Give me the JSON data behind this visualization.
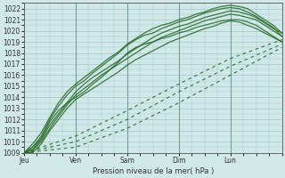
{
  "xlabel": "Pression niveau de la mer( hPa )",
  "ylim": [
    1009,
    1022.5
  ],
  "xlim": [
    0,
    120
  ],
  "yticks": [
    1009,
    1010,
    1011,
    1012,
    1013,
    1014,
    1015,
    1016,
    1017,
    1018,
    1019,
    1020,
    1021,
    1022
  ],
  "xtick_positions": [
    0,
    24,
    48,
    72,
    96,
    120
  ],
  "xtick_labels": [
    "Jeu",
    "Ven",
    "Sam",
    "Dim",
    "Lun",
    ""
  ],
  "bg_color": "#d0e8e8",
  "grid_color": "#a0c8c8",
  "line_color": "#2a6e2a",
  "solid_lines": [
    [
      0,
      1009,
      4,
      1009.8,
      8,
      1010.8,
      12,
      1012.2,
      16,
      1013.5,
      20,
      1014.5,
      24,
      1015.2,
      28,
      1015.8,
      32,
      1016.4,
      36,
      1017.0,
      40,
      1017.6,
      44,
      1018.1,
      48,
      1018.8,
      52,
      1019.3,
      56,
      1019.8,
      60,
      1020.2,
      64,
      1020.5,
      68,
      1020.7,
      72,
      1021.0,
      76,
      1021.2,
      80,
      1021.5,
      84,
      1021.7,
      88,
      1022.0,
      92,
      1022.2,
      96,
      1022.3,
      100,
      1022.2,
      104,
      1022.0,
      108,
      1021.5,
      112,
      1021.0,
      116,
      1020.5,
      120,
      1019.8
    ],
    [
      0,
      1009,
      4,
      1009.5,
      8,
      1010.5,
      12,
      1012.0,
      16,
      1013.2,
      20,
      1014.2,
      24,
      1015.0,
      28,
      1015.5,
      32,
      1016.2,
      36,
      1016.8,
      40,
      1017.4,
      44,
      1018.0,
      48,
      1018.7,
      52,
      1019.2,
      56,
      1019.6,
      60,
      1019.8,
      64,
      1020.2,
      68,
      1020.5,
      72,
      1020.8,
      76,
      1021.0,
      80,
      1021.3,
      84,
      1021.6,
      88,
      1021.8,
      92,
      1022.0,
      96,
      1022.1,
      100,
      1022.0,
      104,
      1021.7,
      108,
      1021.3,
      112,
      1020.8,
      116,
      1020.3,
      120,
      1019.5
    ],
    [
      0,
      1009,
      4,
      1009.3,
      8,
      1010.2,
      12,
      1011.5,
      16,
      1012.5,
      20,
      1013.5,
      24,
      1014.5,
      28,
      1015.2,
      32,
      1015.8,
      36,
      1016.3,
      40,
      1016.8,
      44,
      1017.3,
      48,
      1017.9,
      52,
      1018.4,
      56,
      1018.9,
      60,
      1019.4,
      64,
      1019.8,
      68,
      1020.1,
      72,
      1020.4,
      76,
      1020.6,
      80,
      1020.9,
      84,
      1021.2,
      88,
      1021.4,
      92,
      1021.6,
      96,
      1021.8,
      100,
      1021.7,
      104,
      1021.5,
      108,
      1021.2,
      112,
      1020.7,
      116,
      1020.2,
      120,
      1019.8
    ],
    [
      0,
      1009,
      4,
      1009.2,
      8,
      1010.0,
      12,
      1011.2,
      16,
      1012.3,
      20,
      1013.3,
      24,
      1014.2,
      28,
      1014.8,
      32,
      1015.4,
      36,
      1016.0,
      40,
      1016.5,
      44,
      1017.0,
      48,
      1017.5,
      52,
      1018.0,
      56,
      1018.5,
      60,
      1019.0,
      64,
      1019.4,
      68,
      1019.7,
      72,
      1020.0,
      76,
      1020.3,
      80,
      1020.6,
      84,
      1020.9,
      88,
      1021.1,
      92,
      1021.3,
      96,
      1021.5,
      100,
      1021.4,
      104,
      1021.2,
      108,
      1021.0,
      112,
      1020.5,
      116,
      1020.0,
      120,
      1019.5
    ],
    [
      0,
      1009,
      4,
      1009.0,
      8,
      1009.8,
      12,
      1011.0,
      16,
      1012.0,
      20,
      1013.0,
      24,
      1013.8,
      28,
      1014.3,
      32,
      1014.8,
      36,
      1015.3,
      40,
      1015.8,
      44,
      1016.3,
      48,
      1016.9,
      52,
      1017.4,
      56,
      1017.8,
      60,
      1018.2,
      64,
      1018.6,
      68,
      1019.0,
      72,
      1019.3,
      76,
      1019.6,
      80,
      1019.9,
      84,
      1020.2,
      88,
      1020.4,
      92,
      1020.7,
      96,
      1020.9,
      100,
      1020.8,
      104,
      1020.5,
      108,
      1020.2,
      112,
      1019.8,
      116,
      1019.4,
      120,
      1019.0
    ],
    [
      0,
      1009,
      4,
      1009.5,
      8,
      1010.3,
      12,
      1011.8,
      16,
      1012.8,
      20,
      1013.5,
      24,
      1014.0,
      28,
      1014.5,
      32,
      1015.2,
      36,
      1015.8,
      40,
      1016.5,
      44,
      1017.2,
      48,
      1018.0,
      52,
      1018.5,
      56,
      1018.8,
      60,
      1019.0,
      64,
      1019.3,
      68,
      1019.5,
      72,
      1019.8,
      76,
      1020.0,
      80,
      1020.3,
      84,
      1020.5,
      88,
      1020.7,
      92,
      1020.9,
      96,
      1021.0,
      100,
      1021.0,
      104,
      1020.8,
      108,
      1020.5,
      112,
      1020.0,
      116,
      1019.5,
      120,
      1019.0
    ]
  ],
  "dotted_lines": [
    [
      0,
      1009,
      24,
      1010.5,
      48,
      1012.8,
      72,
      1015.2,
      96,
      1017.5,
      120,
      1019.2
    ],
    [
      0,
      1009,
      24,
      1010.0,
      48,
      1012.0,
      72,
      1014.5,
      96,
      1016.8,
      120,
      1018.8
    ],
    [
      0,
      1009,
      24,
      1009.5,
      48,
      1011.2,
      72,
      1013.5,
      96,
      1016.0,
      120,
      1018.5
    ]
  ]
}
